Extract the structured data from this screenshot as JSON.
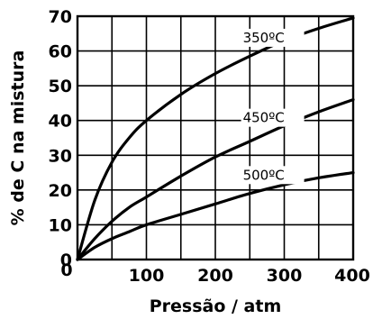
{
  "chart_data": {
    "type": "line",
    "xlabel": "Pressão / atm",
    "ylabel": "% de C na mistura",
    "xlim": [
      0,
      400
    ],
    "ylim": [
      0,
      70
    ],
    "xticks": [
      0,
      100,
      200,
      300,
      400
    ],
    "yticks": [
      0,
      10,
      20,
      30,
      40,
      50,
      60,
      70
    ],
    "xtick_labels": [
      "0",
      "100",
      "200",
      "300",
      "400"
    ],
    "ytick_labels": [
      "0",
      "10",
      "20",
      "30",
      "40",
      "50",
      "60",
      "70"
    ],
    "grid": true,
    "series": [
      {
        "name": "350ºC",
        "x": [
          0,
          25,
          50,
          75,
          100,
          150,
          200,
          250,
          300,
          350,
          400
        ],
        "y": [
          0,
          17,
          28,
          35,
          40,
          47.5,
          53.5,
          58.5,
          63,
          66.5,
          69.5
        ]
      },
      {
        "name": "450ºC",
        "x": [
          0,
          25,
          50,
          75,
          100,
          150,
          200,
          250,
          300,
          350,
          400
        ],
        "y": [
          0,
          6,
          11,
          15,
          18,
          24,
          29.5,
          34,
          38.5,
          42.5,
          46
        ]
      },
      {
        "name": "500ºC",
        "x": [
          0,
          25,
          50,
          75,
          100,
          150,
          200,
          250,
          300,
          350,
          400
        ],
        "y": [
          0,
          3.5,
          6,
          8,
          10,
          13,
          16,
          19,
          21.5,
          23.5,
          25
        ]
      }
    ]
  }
}
